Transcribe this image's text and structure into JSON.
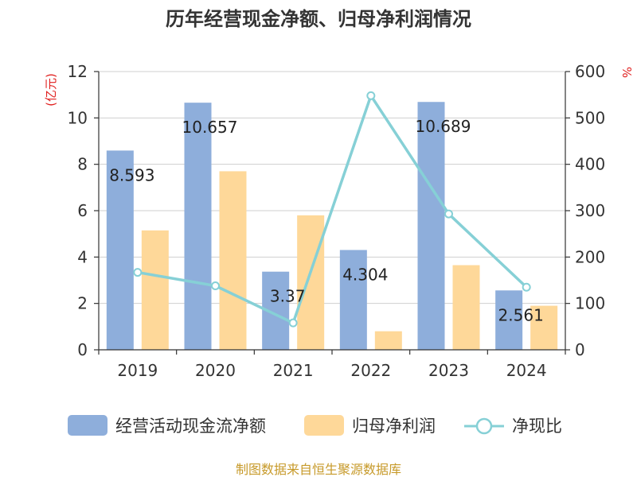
{
  "chart_data": {
    "type": "bar",
    "title": "历年经营现金净额、归母净利润情况",
    "categories": [
      "2019",
      "2020",
      "2021",
      "2022",
      "2023",
      "2024"
    ],
    "series": [
      {
        "name": "经营活动现金流净额",
        "kind": "bar",
        "axis": "left",
        "color": "#8eaedb",
        "values": [
          8.593,
          10.657,
          3.37,
          4.304,
          10.689,
          2.561
        ],
        "labels": [
          "8.593",
          "10.657",
          "3.37",
          "4.304",
          "10.689",
          "2.561"
        ]
      },
      {
        "name": "归母净利润",
        "kind": "bar",
        "axis": "left",
        "color": "#fed899",
        "values": [
          5.15,
          7.7,
          5.8,
          0.8,
          3.65,
          1.9
        ]
      },
      {
        "name": "净现比",
        "kind": "line",
        "axis": "right",
        "color": "#86d0d6",
        "values": [
          167,
          138,
          58,
          548,
          293,
          135
        ]
      }
    ],
    "yleft": {
      "label": "(亿元)",
      "min": 0,
      "max": 12,
      "ticks": [
        "0",
        "2",
        "4",
        "6",
        "8",
        "10",
        "12"
      ]
    },
    "yright": {
      "label": "%",
      "min": 0,
      "max": 600,
      "ticks": [
        "0",
        "100",
        "200",
        "300",
        "400",
        "500",
        "600"
      ]
    },
    "grid": true,
    "legend_position": "bottom"
  },
  "source": "制图数据来自恒生聚源数据库"
}
